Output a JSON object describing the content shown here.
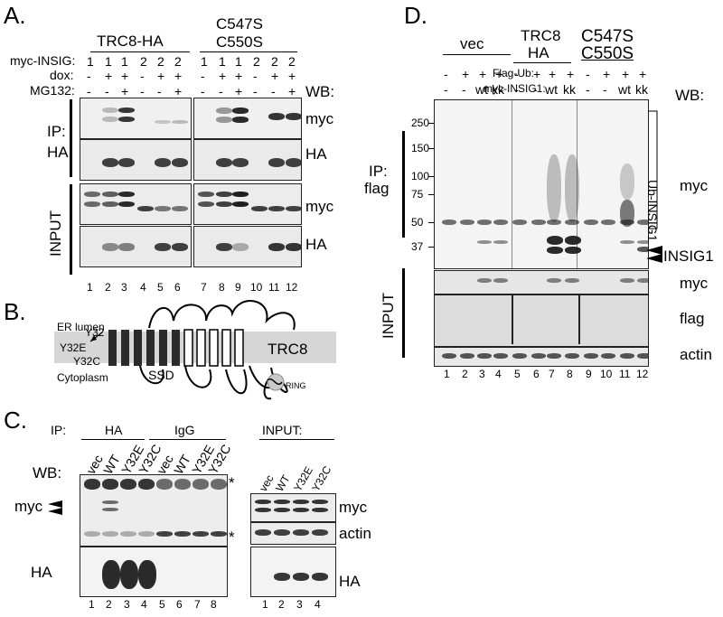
{
  "panelA": {
    "letter": "A.",
    "group1": "TRC8-HA",
    "group2_line1": "C547S",
    "group2_line2": "C550S",
    "row_labels": [
      "myc-INSIG:",
      "dox:",
      "MG132:"
    ],
    "insig": [
      "1",
      "1",
      "1",
      "2",
      "2",
      "2",
      "1",
      "1",
      "1",
      "2",
      "2",
      "2"
    ],
    "dox": [
      "-",
      "+",
      "+",
      "-",
      "+",
      "+",
      "-",
      "+",
      "+",
      "-",
      "+",
      "+"
    ],
    "mg132": [
      "-",
      "-",
      "+",
      "-",
      "-",
      "+",
      "-",
      "-",
      "+",
      "-",
      "-",
      "+"
    ],
    "wb": "WB:",
    "ip_label1": "IP:",
    "ip_label2": "HA",
    "input_label": "INPUT",
    "blot_labels": [
      "myc",
      "HA",
      "myc",
      "HA"
    ],
    "lanes": [
      "1",
      "2",
      "3",
      "4",
      "5",
      "6",
      "7",
      "8",
      "9",
      "10",
      "11",
      "12"
    ]
  },
  "panelB": {
    "letter": "B.",
    "er_lumen": "ER lumen",
    "cytoplasm": "Cytoplasm",
    "y32": "Y32",
    "y32e": "Y32E",
    "y32c": "Y32C",
    "ssd": "SSD",
    "trc8": "TRC8",
    "ring": "RING"
  },
  "panelC": {
    "letter": "C.",
    "ip": "IP:",
    "ha": "HA",
    "igg": "IgG",
    "input": "INPUT:",
    "wb": "WB:",
    "lane_ip": [
      "vec",
      "WT",
      "Y32E",
      "Y32C",
      "vec",
      "WT",
      "Y32E",
      "Y32C"
    ],
    "lane_input": [
      "vec",
      "WT",
      "Y32E",
      "Y32C"
    ],
    "myc": "myc",
    "ha_blot": "HA",
    "star": "*",
    "right_labels": [
      "myc",
      "actin",
      "HA"
    ],
    "lanes": [
      "1",
      "2",
      "3",
      "4",
      "5",
      "6",
      "7",
      "8"
    ],
    "lanes_input": [
      "1",
      "2",
      "3",
      "4"
    ]
  },
  "panelD": {
    "letter": "D.",
    "vec": "vec",
    "trc8_1": "TRC8",
    "trc8_2": "HA",
    "mut1": "C547S",
    "mut2": "C550S",
    "flag_ub": "Flag-Ub:",
    "myc_insig": "myc-INSIG1:",
    "flag_ub_vals": [
      "-",
      "+",
      "+",
      "+",
      "-",
      "+",
      "+",
      "+",
      "-",
      "+",
      "+",
      "+"
    ],
    "myc_insig_vals": [
      "-",
      "-",
      "wt",
      "kk",
      "-",
      "-",
      "wt",
      "kk",
      "-",
      "-",
      "wt",
      "kk"
    ],
    "wb": "WB:",
    "mw": [
      "250",
      "150",
      "100",
      "75",
      "50",
      "37"
    ],
    "ip1": "IP:",
    "ip2": "flag",
    "ub_insig": "Ub-INSIG1",
    "myc": "myc",
    "insig1": "INSIG1",
    "input": "INPUT",
    "input_labels": [
      "myc",
      "flag",
      "actin"
    ],
    "lanes": [
      "1",
      "2",
      "3",
      "4",
      "5",
      "6",
      "7",
      "8",
      "9",
      "10",
      "11",
      "12"
    ]
  }
}
